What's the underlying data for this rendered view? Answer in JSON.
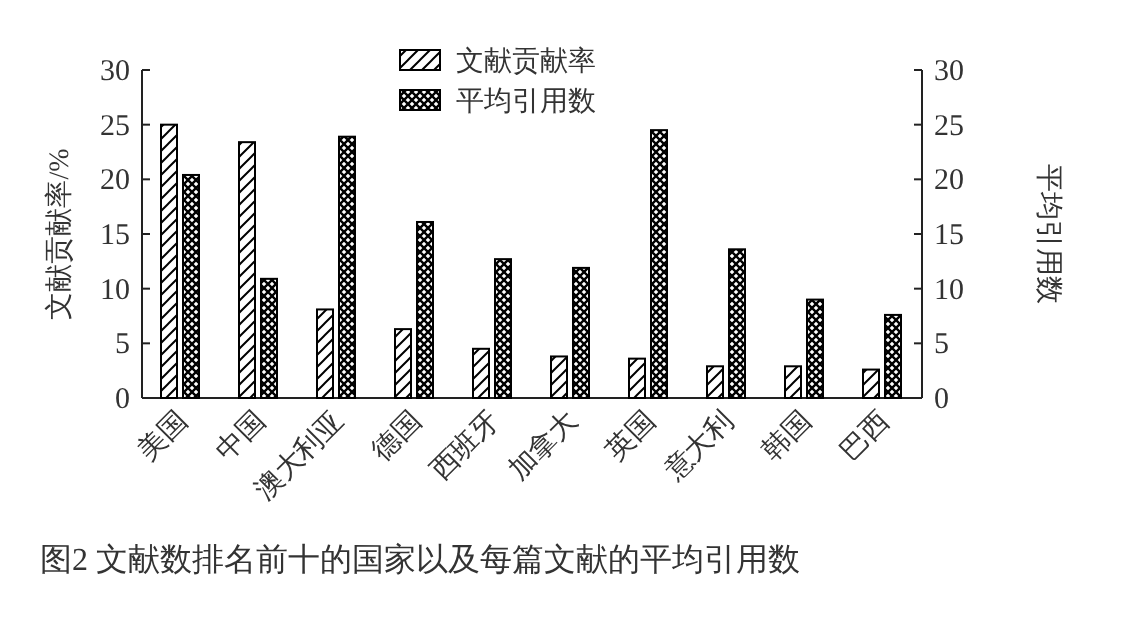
{
  "chart_data": {
    "type": "bar",
    "ylabel": "文献贡献率/%",
    "y2label": "平均引用数",
    "categories": [
      "美国",
      "中国",
      "澳大利亚",
      "德国",
      "西班牙",
      "加拿大",
      "英国",
      "意大利",
      "韩国",
      "巴西"
    ],
    "series": [
      {
        "name": "文献贡献率",
        "color": "#000000",
        "values": [
          25,
          23.4,
          8.1,
          6.3,
          4.5,
          3.8,
          3.6,
          2.9,
          2.9,
          2.6
        ]
      },
      {
        "name": "平均引用数",
        "color": "#000000",
        "axis": "y2",
        "values": [
          20.4,
          10.9,
          23.9,
          16.1,
          12.7,
          11.9,
          24.5,
          13.6,
          9.0,
          7.6
        ]
      }
    ],
    "ylim": [
      0,
      30
    ],
    "yticks": [
      0,
      5,
      10,
      15,
      20,
      25,
      30
    ],
    "y2lim": [
      0,
      30
    ],
    "y2ticks": [
      0,
      5,
      10,
      15,
      20,
      25,
      30
    ],
    "legend": "top",
    "annotations": [
      "图2 文献数排名前十的国家以及每篇文献的平均引用数"
    ]
  }
}
